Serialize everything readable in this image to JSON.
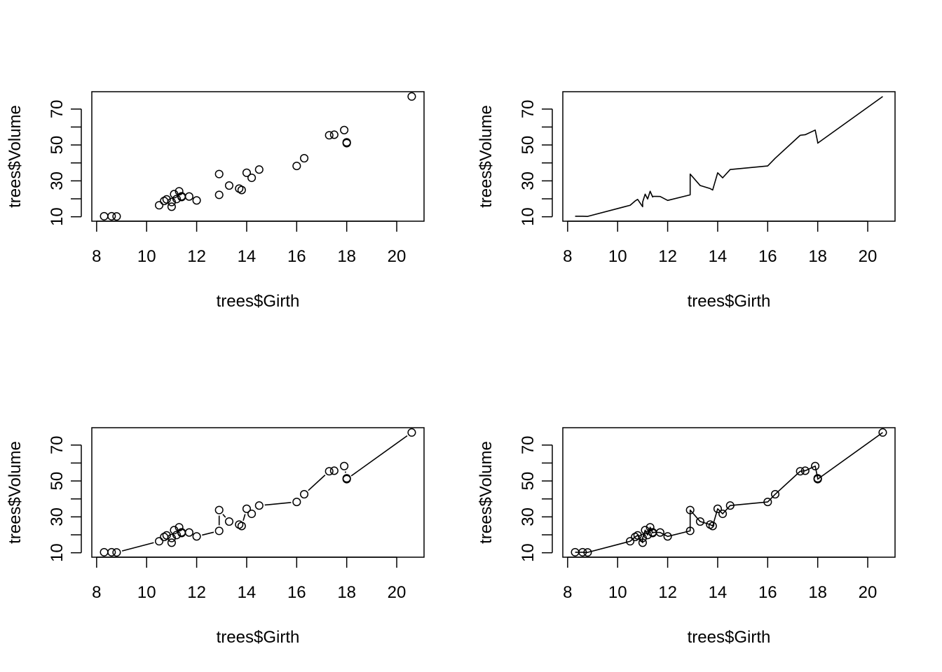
{
  "chart_data": [
    {
      "type": "scatter",
      "xlabel": "trees$Girth",
      "ylabel": "trees$Volume",
      "xlim": [
        8.3,
        20.6
      ],
      "ylim": [
        10.2,
        77.0
      ],
      "x_ticks": [
        8,
        10,
        12,
        14,
        16,
        18,
        20
      ],
      "y_ticks": [
        10,
        30,
        50,
        70
      ],
      "y_minor_ticks": [
        20,
        40,
        60
      ],
      "series": [
        {
          "x": [
            8.3,
            8.6,
            8.8,
            10.5,
            10.7,
            10.8,
            11.0,
            11.0,
            11.1,
            11.2,
            11.3,
            11.4,
            11.4,
            11.7,
            12.0,
            12.9,
            12.9,
            13.3,
            13.7,
            13.8,
            14.0,
            14.2,
            14.5,
            16.0,
            16.3,
            17.3,
            17.5,
            17.9,
            18.0,
            18.0,
            20.6
          ],
          "y": [
            10.3,
            10.3,
            10.2,
            16.4,
            18.8,
            19.7,
            15.6,
            18.2,
            22.6,
            19.9,
            24.2,
            21.0,
            21.4,
            21.3,
            19.1,
            22.2,
            33.8,
            27.4,
            25.7,
            24.9,
            34.5,
            31.7,
            36.3,
            38.3,
            42.6,
            55.4,
            55.7,
            58.3,
            51.5,
            51.0,
            77.0
          ]
        }
      ]
    },
    {
      "type": "line",
      "xlabel": "trees$Girth",
      "ylabel": "trees$Volume",
      "xlim": [
        8.3,
        20.6
      ],
      "ylim": [
        10.2,
        77.0
      ],
      "x_ticks": [
        8,
        10,
        12,
        14,
        16,
        18,
        20
      ],
      "y_ticks": [
        10,
        30,
        50,
        70
      ],
      "y_minor_ticks": [
        20,
        40,
        60
      ],
      "series": [
        {
          "x": [
            8.3,
            8.6,
            8.8,
            10.5,
            10.7,
            10.8,
            11.0,
            11.0,
            11.1,
            11.2,
            11.3,
            11.4,
            11.4,
            11.7,
            12.0,
            12.9,
            12.9,
            13.3,
            13.7,
            13.8,
            14.0,
            14.2,
            14.5,
            16.0,
            16.3,
            17.3,
            17.5,
            17.9,
            18.0,
            18.0,
            20.6
          ],
          "y": [
            10.3,
            10.3,
            10.2,
            16.4,
            18.8,
            19.7,
            15.6,
            18.2,
            22.6,
            19.9,
            24.2,
            21.0,
            21.4,
            21.3,
            19.1,
            22.2,
            33.8,
            27.4,
            25.7,
            24.9,
            34.5,
            31.7,
            36.3,
            38.3,
            42.6,
            55.4,
            55.7,
            58.3,
            51.5,
            51.0,
            77.0
          ]
        }
      ]
    },
    {
      "type": "line",
      "style": "points and disconnected segments",
      "xlabel": "trees$Girth",
      "ylabel": "trees$Volume",
      "xlim": [
        8.3,
        20.6
      ],
      "ylim": [
        10.2,
        77.0
      ],
      "x_ticks": [
        8,
        10,
        12,
        14,
        16,
        18,
        20
      ],
      "y_ticks": [
        10,
        30,
        50,
        70
      ],
      "y_minor_ticks": [
        20,
        40,
        60
      ],
      "series": [
        {
          "x": [
            8.3,
            8.6,
            8.8,
            10.5,
            10.7,
            10.8,
            11.0,
            11.0,
            11.1,
            11.2,
            11.3,
            11.4,
            11.4,
            11.7,
            12.0,
            12.9,
            12.9,
            13.3,
            13.7,
            13.8,
            14.0,
            14.2,
            14.5,
            16.0,
            16.3,
            17.3,
            17.5,
            17.9,
            18.0,
            18.0,
            20.6
          ],
          "y": [
            10.3,
            10.3,
            10.2,
            16.4,
            18.8,
            19.7,
            15.6,
            18.2,
            22.6,
            19.9,
            24.2,
            21.0,
            21.4,
            21.3,
            19.1,
            22.2,
            33.8,
            27.4,
            25.7,
            24.9,
            34.5,
            31.7,
            36.3,
            38.3,
            42.6,
            55.4,
            55.7,
            58.3,
            51.5,
            51.0,
            77.0
          ]
        }
      ]
    },
    {
      "type": "line",
      "style": "points over connected lines",
      "xlabel": "trees$Girth",
      "ylabel": "trees$Volume",
      "xlim": [
        8.3,
        20.6
      ],
      "ylim": [
        10.2,
        77.0
      ],
      "x_ticks": [
        8,
        10,
        12,
        14,
        16,
        18,
        20
      ],
      "y_ticks": [
        10,
        30,
        50,
        70
      ],
      "y_minor_ticks": [
        20,
        40,
        60
      ],
      "series": [
        {
          "x": [
            8.3,
            8.6,
            8.8,
            10.5,
            10.7,
            10.8,
            11.0,
            11.0,
            11.1,
            11.2,
            11.3,
            11.4,
            11.4,
            11.7,
            12.0,
            12.9,
            12.9,
            13.3,
            13.7,
            13.8,
            14.0,
            14.2,
            14.5,
            16.0,
            16.3,
            17.3,
            17.5,
            17.9,
            18.0,
            18.0,
            20.6
          ],
          "y": [
            10.3,
            10.3,
            10.2,
            16.4,
            18.8,
            19.7,
            15.6,
            18.2,
            22.6,
            19.9,
            24.2,
            21.0,
            21.4,
            21.3,
            19.1,
            22.2,
            33.8,
            27.4,
            25.7,
            24.9,
            34.5,
            31.7,
            36.3,
            38.3,
            42.6,
            55.4,
            55.7,
            58.3,
            51.5,
            51.0,
            77.0
          ]
        }
      ]
    }
  ]
}
